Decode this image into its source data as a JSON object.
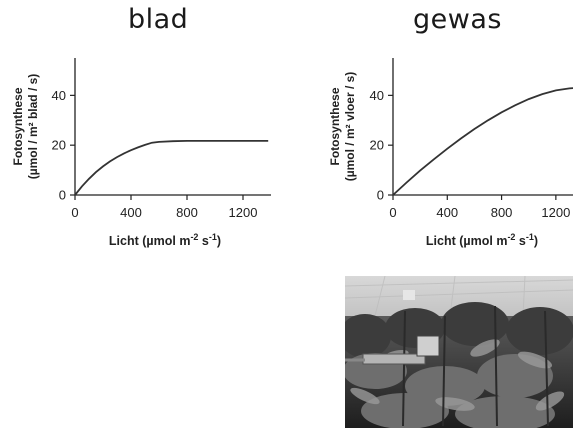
{
  "titles": {
    "left": "blad",
    "right": "gewas"
  },
  "chart_data": [
    {
      "type": "line",
      "title": "blad",
      "xlabel": "Licht (µmol m-2 s-1)",
      "ylabel": "Fotosynthese (µmol / m2 blad / s)",
      "ylabel_line1": "Fotosynthese",
      "ylabel_line2": "(µmol / m² blad / s)",
      "xlabel_parts": {
        "pre": "Licht (µmol m",
        "sup1": "-2",
        "mid": " s",
        "sup2": "-1",
        "post": ")"
      },
      "xlim": [
        0,
        1400
      ],
      "ylim": [
        0,
        55
      ],
      "xticks": [
        0,
        400,
        800,
        1200
      ],
      "yticks": [
        0,
        20,
        40
      ],
      "series": [
        {
          "values_x": [
            0,
            50,
            100,
            150,
            200,
            250,
            300,
            350,
            400,
            450,
            500,
            550,
            600,
            700,
            800,
            900,
            1000,
            1100,
            1200,
            1300,
            1380
          ],
          "values_y": [
            0,
            3.5,
            6.5,
            9.2,
            11.5,
            13.5,
            15.2,
            16.7,
            18.0,
            19.1,
            20.1,
            21.0,
            21.3,
            21.6,
            21.7,
            21.7,
            21.7,
            21.7,
            21.7,
            21.7,
            21.7
          ]
        }
      ]
    },
    {
      "type": "line",
      "title": "gewas",
      "xlabel": "Licht (µmol m-2 s-1)",
      "ylabel": "Fotosynthese (µmol / m2 vloer / s)",
      "ylabel_line1": "Fotosynthese",
      "ylabel_line2": "(µmol / m² vloer / s)",
      "xlabel_parts": {
        "pre": "Licht (µmol m",
        "sup1": "-2",
        "mid": " s",
        "sup2": "-1",
        "post": ")"
      },
      "xlim": [
        0,
        1400
      ],
      "ylim": [
        0,
        55
      ],
      "xticks": [
        0,
        400,
        800,
        1200
      ],
      "yticks": [
        0,
        20,
        40
      ],
      "series": [
        {
          "values_x": [
            0,
            100,
            200,
            300,
            400,
            500,
            600,
            700,
            800,
            900,
            1000,
            1100,
            1200,
            1300,
            1400
          ],
          "values_y": [
            0,
            5,
            9.8,
            14.3,
            18.6,
            22.7,
            26.5,
            30.0,
            33.2,
            36.0,
            38.5,
            40.5,
            42.0,
            42.8,
            43.2
          ]
        }
      ]
    }
  ],
  "photo": {
    "description_icon": "greenhouse-crop-photo"
  },
  "colors": {
    "line": "#333333",
    "axis": "#222222"
  }
}
